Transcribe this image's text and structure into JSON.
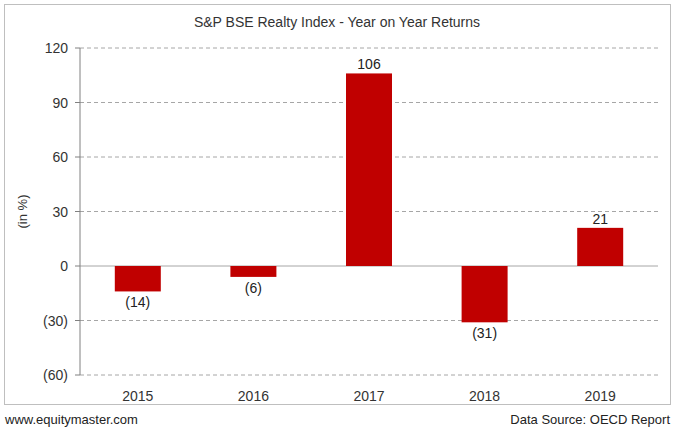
{
  "chart_data": {
    "type": "bar",
    "title": "S&P BSE Realty Index - Year on Year Returns",
    "y_label": "(in %)",
    "annotations": [
      "www.equitymaster.com",
      "Data Source: OECD Report"
    ],
    "categories": [
      "2015",
      "2016",
      "2017",
      "2018",
      "2019"
    ],
    "values": [
      -14,
      -6,
      106,
      -31,
      21
    ],
    "value_labels": [
      "(14)",
      "(6)",
      "106",
      "(31)",
      "21"
    ],
    "data_labels": true,
    "color": "#c00000",
    "ylim": [
      -60,
      120
    ],
    "yticks": [
      {
        "value": -60,
        "label": "(60)"
      },
      {
        "value": -30,
        "label": "(30)"
      },
      0,
      30,
      60,
      90,
      120
    ],
    "grid": true
  }
}
